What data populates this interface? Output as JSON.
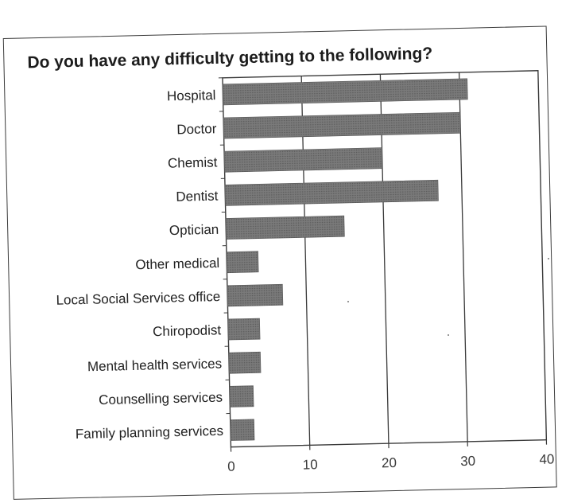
{
  "chart_data": {
    "type": "bar",
    "orientation": "horizontal",
    "title": "Do you have any difficulty getting to the following?",
    "categories": [
      "Hospital",
      "Doctor",
      "Chemist",
      "Dentist",
      "Optician",
      "Other medical",
      "Local Social Services office",
      "Chiropodist",
      "Mental health services",
      "Counselling services",
      "Family planning services"
    ],
    "values": [
      31,
      30,
      20,
      27,
      15,
      4,
      7,
      4,
      4,
      3,
      3
    ],
    "xlim": [
      0,
      40
    ],
    "xticks": [
      "0",
      "10",
      "20",
      "30",
      "40"
    ],
    "grid": "vertical",
    "bar_color": "#707070"
  }
}
